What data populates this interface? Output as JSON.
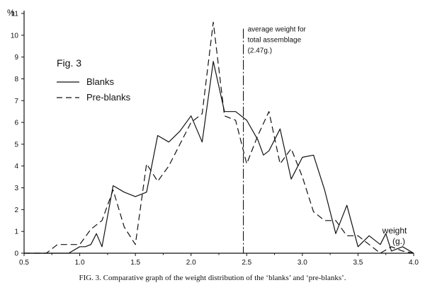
{
  "chart_data": {
    "type": "line",
    "fig_label": "Fig. 3",
    "ylabel": "%",
    "xlabel": "weight",
    "xlabel_unit": "(g.)",
    "xlim": [
      0.5,
      4.0
    ],
    "ylim": [
      0,
      11
    ],
    "x_ticks": [
      "0.5",
      "1.0",
      "1.5",
      "2.0",
      "2.5",
      "3.0",
      "3.5",
      "4.0"
    ],
    "y_ticks": [
      "0",
      "1",
      "2",
      "3",
      "4",
      "5",
      "6",
      "7",
      "8",
      "9",
      "10",
      "11"
    ],
    "grid": false,
    "legend_position": "upper-left",
    "series": [
      {
        "name": "Blanks",
        "style": "solid",
        "points": [
          [
            0.5,
            0
          ],
          [
            0.9,
            0
          ],
          [
            1.0,
            0.3
          ],
          [
            1.05,
            0.3
          ],
          [
            1.1,
            0.4
          ],
          [
            1.15,
            0.9
          ],
          [
            1.2,
            0.3
          ],
          [
            1.3,
            3.1
          ],
          [
            1.4,
            2.8
          ],
          [
            1.5,
            2.6
          ],
          [
            1.6,
            2.8
          ],
          [
            1.7,
            5.4
          ],
          [
            1.8,
            5.1
          ],
          [
            1.9,
            5.6
          ],
          [
            2.0,
            6.3
          ],
          [
            2.1,
            5.1
          ],
          [
            2.2,
            8.8
          ],
          [
            2.3,
            6.5
          ],
          [
            2.4,
            6.5
          ],
          [
            2.5,
            6.1
          ],
          [
            2.6,
            5.2
          ],
          [
            2.65,
            4.5
          ],
          [
            2.7,
            4.7
          ],
          [
            2.8,
            5.7
          ],
          [
            2.9,
            3.4
          ],
          [
            2.95,
            3.9
          ],
          [
            3.0,
            4.4
          ],
          [
            3.1,
            4.5
          ],
          [
            3.2,
            2.9
          ],
          [
            3.3,
            0.9
          ],
          [
            3.4,
            2.2
          ],
          [
            3.5,
            0.3
          ],
          [
            3.6,
            0.8
          ],
          [
            3.7,
            0.4
          ],
          [
            3.75,
            0.9
          ],
          [
            3.8,
            0.1
          ],
          [
            3.9,
            0.3
          ],
          [
            4.0,
            0
          ]
        ]
      },
      {
        "name": "Pre-blanks",
        "style": "dashed",
        "points": [
          [
            0.5,
            0
          ],
          [
            0.7,
            0
          ],
          [
            0.8,
            0.4
          ],
          [
            0.9,
            0.4
          ],
          [
            1.0,
            0.4
          ],
          [
            1.1,
            1.1
          ],
          [
            1.2,
            1.5
          ],
          [
            1.3,
            2.9
          ],
          [
            1.4,
            1.2
          ],
          [
            1.5,
            0.4
          ],
          [
            1.6,
            4.1
          ],
          [
            1.7,
            3.3
          ],
          [
            1.8,
            4.0
          ],
          [
            1.9,
            5.0
          ],
          [
            2.0,
            6.0
          ],
          [
            2.1,
            6.4
          ],
          [
            2.2,
            10.6
          ],
          [
            2.3,
            6.3
          ],
          [
            2.4,
            6.1
          ],
          [
            2.5,
            4.1
          ],
          [
            2.6,
            5.4
          ],
          [
            2.7,
            6.5
          ],
          [
            2.8,
            4.1
          ],
          [
            2.9,
            4.8
          ],
          [
            3.0,
            3.5
          ],
          [
            3.1,
            1.9
          ],
          [
            3.2,
            1.5
          ],
          [
            3.3,
            1.5
          ],
          [
            3.4,
            0.8
          ],
          [
            3.5,
            0.8
          ],
          [
            3.6,
            0.4
          ],
          [
            3.7,
            0.0
          ],
          [
            3.8,
            0.3
          ],
          [
            3.9,
            0.1
          ],
          [
            4.0,
            0
          ]
        ]
      }
    ],
    "annotation": {
      "x_value": 2.47,
      "line_style": "dash-dot",
      "lines": [
        "average weight for",
        "total assemblage",
        "(2.47g.)"
      ]
    }
  },
  "caption": "FIG. 3.  Comparative graph of the weight distribution of the ‘blanks’ and ‘pre-blanks’."
}
